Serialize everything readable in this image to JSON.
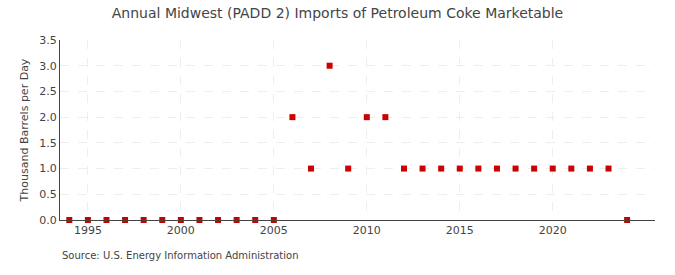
{
  "chart_data": {
    "type": "scatter",
    "title": "Annual Midwest (PADD 2) Imports of Petroleum Coke Marketable",
    "ylabel": "Thousand Barrels per Day",
    "source": "Source: U.S. Energy Information Administration",
    "x": [
      1994,
      1995,
      1996,
      1997,
      1998,
      1999,
      2000,
      2001,
      2002,
      2003,
      2004,
      2005,
      2006,
      2007,
      2008,
      2009,
      2010,
      2011,
      2012,
      2013,
      2014,
      2015,
      2016,
      2017,
      2018,
      2019,
      2020,
      2021,
      2022,
      2023,
      2024
    ],
    "values": [
      0,
      0,
      0,
      0,
      0,
      0,
      0,
      0,
      0,
      0,
      0,
      0,
      2,
      1,
      3,
      1,
      2,
      2,
      1,
      1,
      1,
      1,
      1,
      1,
      1,
      1,
      1,
      1,
      1,
      1,
      0
    ],
    "color": "#cc0000",
    "marker": "square",
    "xlim": [
      1993.5,
      2025.5
    ],
    "xticks": [
      1995,
      2000,
      2005,
      2010,
      2015,
      2020
    ],
    "ylim": [
      0,
      3.5
    ],
    "yticks": [
      {
        "value": 0,
        "label": "0.0"
      },
      0.5,
      {
        "value": 1,
        "label": "1.0"
      },
      1.5,
      {
        "value": 2,
        "label": "2.0"
      },
      2.5,
      {
        "value": 3,
        "label": "3.0"
      },
      3.5
    ],
    "grid": true
  }
}
